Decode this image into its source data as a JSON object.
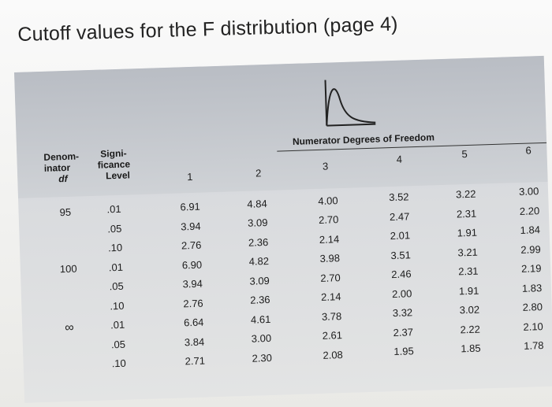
{
  "title": "Cutoff values for the F distribution (page 4)",
  "table": {
    "col_header_denom": [
      "Denom-",
      "inator",
      "df"
    ],
    "col_header_sig": [
      "Signi-",
      "ficance",
      "Level"
    ],
    "numerator_label": "Numerator Degrees of Freedom",
    "numerator_df": [
      "1",
      "2",
      "3",
      "4",
      "5",
      "6"
    ],
    "denom_values": [
      "95",
      "100",
      "∞"
    ],
    "sig_levels": [
      ".01",
      ".05",
      ".10",
      ".01",
      ".05",
      ".10",
      ".01",
      ".05",
      ".10"
    ],
    "rows": [
      [
        "6.91",
        "4.84",
        "4.00",
        "3.52",
        "3.22",
        "3.00"
      ],
      [
        "3.94",
        "3.09",
        "2.70",
        "2.47",
        "2.31",
        "2.20"
      ],
      [
        "2.76",
        "2.36",
        "2.14",
        "2.01",
        "1.91",
        "1.84"
      ],
      [
        "6.90",
        "4.82",
        "3.98",
        "3.51",
        "3.21",
        "2.99"
      ],
      [
        "3.94",
        "3.09",
        "2.70",
        "2.46",
        "2.31",
        "2.19"
      ],
      [
        "2.76",
        "2.36",
        "2.14",
        "2.00",
        "1.91",
        "1.83"
      ],
      [
        "6.64",
        "4.61",
        "3.78",
        "3.32",
        "3.02",
        "2.80"
      ],
      [
        "3.84",
        "3.00",
        "2.61",
        "2.37",
        "2.22",
        "2.10"
      ],
      [
        "2.71",
        "2.30",
        "2.08",
        "1.95",
        "1.85",
        "1.78"
      ]
    ]
  }
}
